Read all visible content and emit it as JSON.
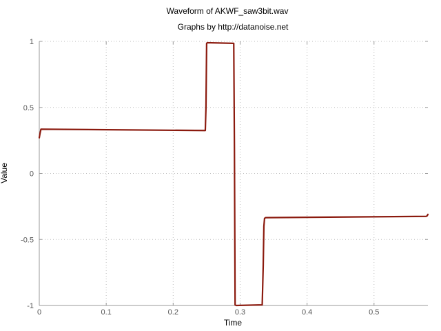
{
  "chart_data": {
    "type": "line",
    "title": "Waveform of AKWF_saw3bit.wav",
    "subtitle": "Graphs by http://datanoise.net",
    "xlabel": "Time",
    "ylabel": "Value",
    "xlim": [
      0,
      0.5805
    ],
    "ylim": [
      -1,
      1
    ],
    "xticks": [
      0,
      0.1,
      0.2,
      0.3,
      0.4,
      0.5
    ],
    "xtick_labels": [
      "0",
      "0.1",
      "0.2",
      "0.3",
      "0.4",
      "0.5"
    ],
    "yticks": [
      -1,
      -0.5,
      0,
      0.5,
      1
    ],
    "ytick_labels": [
      "-1",
      "-0.5",
      "0",
      "0.5",
      "1"
    ],
    "grid": true,
    "series": [
      {
        "color": "#8b1a0e",
        "x": [
          0,
          0.001,
          0.0025,
          0.248,
          0.249,
          0.25,
          0.251,
          0.2905,
          0.2915,
          0.2925,
          0.294,
          0.333,
          0.3345,
          0.3355,
          0.3365,
          0.338,
          0.578,
          0.5795,
          0.5805
        ],
        "y": [
          0.27,
          0.3,
          0.335,
          0.325,
          0.5,
          0.985,
          0.99,
          0.985,
          0.2,
          -0.995,
          -1.0,
          -0.995,
          -0.7,
          -0.4,
          -0.34,
          -0.335,
          -0.325,
          -0.32,
          -0.31
        ]
      }
    ]
  }
}
